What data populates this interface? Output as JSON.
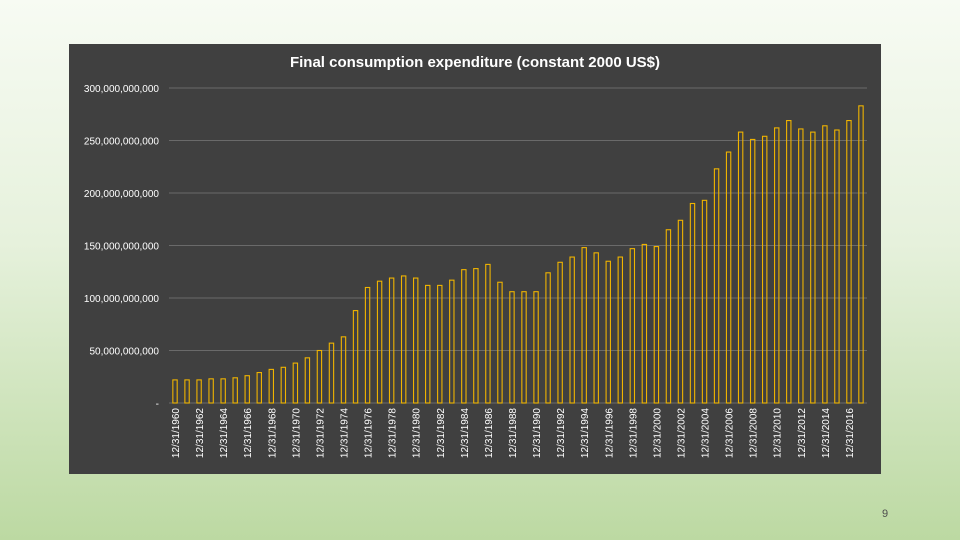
{
  "slide": {
    "page_number": "9"
  },
  "colors": {
    "panel": "#404040",
    "bar_stroke": "#f0b400",
    "gridline": "#6a6a6a",
    "axis_text": "#ffffff"
  },
  "chart_data": {
    "type": "bar",
    "title": "Final consumption expenditure (constant 2000 US$)",
    "xlabel": "",
    "ylabel": "",
    "ylim": [
      0,
      300000000000
    ],
    "y_ticks": [
      {
        "value": 0,
        "label": "-"
      },
      {
        "value": 50000000000,
        "label": "50,000,000,000"
      },
      {
        "value": 100000000000,
        "label": "100,000,000,000"
      },
      {
        "value": 150000000000,
        "label": "150,000,000,000"
      },
      {
        "value": 200000000000,
        "label": "200,000,000,000"
      },
      {
        "value": 250000000000,
        "label": "250,000,000,000"
      },
      {
        "value": 300000000000,
        "label": "300,000,000,000"
      }
    ],
    "grid": true,
    "legend": "none",
    "bar_style": "outline",
    "categories": [
      "12/31/1960",
      "12/31/1961",
      "12/31/1962",
      "12/31/1963",
      "12/31/1964",
      "12/31/1965",
      "12/31/1966",
      "12/31/1967",
      "12/31/1968",
      "12/31/1969",
      "12/31/1970",
      "12/31/1971",
      "12/31/1972",
      "12/31/1973",
      "12/31/1974",
      "12/31/1975",
      "12/31/1976",
      "12/31/1977",
      "12/31/1978",
      "12/31/1979",
      "12/31/1980",
      "12/31/1981",
      "12/31/1982",
      "12/31/1983",
      "12/31/1984",
      "12/31/1985",
      "12/31/1986",
      "12/31/1987",
      "12/31/1988",
      "12/31/1989",
      "12/31/1990",
      "12/31/1991",
      "12/31/1992",
      "12/31/1993",
      "12/31/1994",
      "12/31/1995",
      "12/31/1996",
      "12/31/1997",
      "12/31/1998",
      "12/31/1999",
      "12/31/2000",
      "12/31/2001",
      "12/31/2002",
      "12/31/2003",
      "12/31/2004",
      "12/31/2005",
      "12/31/2006",
      "12/31/2007",
      "12/31/2008",
      "12/31/2009",
      "12/31/2010",
      "12/31/2011",
      "12/31/2012",
      "12/31/2013",
      "12/31/2014",
      "12/31/2015",
      "12/31/2016",
      "12/31/2017"
    ],
    "x_tick_labels_shown": [
      "12/31/1960",
      "12/31/1962",
      "12/31/1964",
      "12/31/1966",
      "12/31/1968",
      "12/31/1970",
      "12/31/1972",
      "12/31/1974",
      "12/31/1976",
      "12/31/1978",
      "12/31/1980",
      "12/31/1982",
      "12/31/1984",
      "12/31/1986",
      "12/31/1988",
      "12/31/1990",
      "12/31/1992",
      "12/31/1994",
      "12/31/1996",
      "12/31/1998",
      "12/31/2000",
      "12/31/2002",
      "12/31/2004",
      "12/31/2006",
      "12/31/2008",
      "12/31/2010",
      "12/31/2012",
      "12/31/2014",
      "12/31/2016"
    ],
    "values": [
      22000000000,
      22000000000,
      22000000000,
      23000000000,
      23000000000,
      24000000000,
      26000000000,
      29000000000,
      32000000000,
      34000000000,
      38000000000,
      43000000000,
      50000000000,
      57000000000,
      63000000000,
      88000000000,
      110000000000,
      116000000000,
      119000000000,
      121000000000,
      119000000000,
      112000000000,
      112000000000,
      117000000000,
      127000000000,
      128000000000,
      132000000000,
      115000000000,
      106000000000,
      106000000000,
      106000000000,
      124000000000,
      134000000000,
      139000000000,
      148000000000,
      143000000000,
      135000000000,
      139000000000,
      147000000000,
      151000000000,
      149000000000,
      165000000000,
      174000000000,
      190000000000,
      193000000000,
      223000000000,
      239000000000,
      258000000000,
      251000000000,
      254000000000,
      262000000000,
      269000000000,
      261000000000,
      258000000000,
      264000000000,
      260000000000,
      269000000000,
      283000000000
    ]
  }
}
